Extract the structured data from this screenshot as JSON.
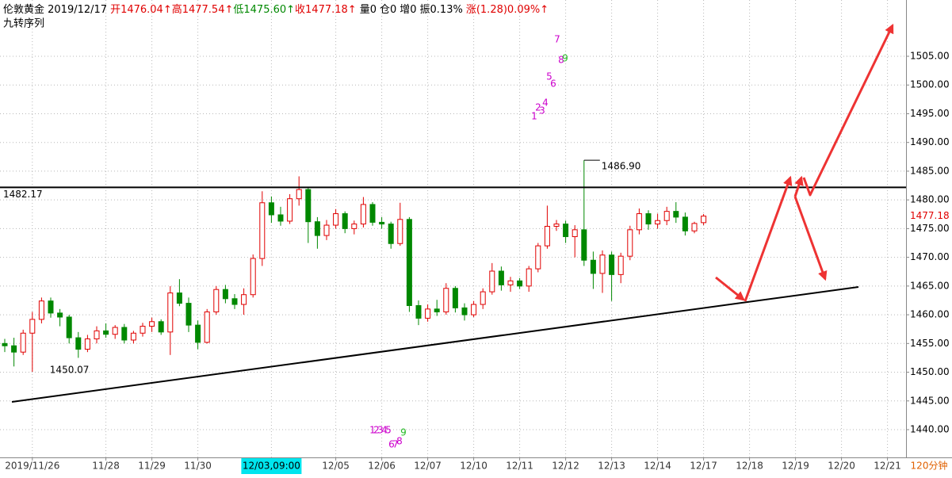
{
  "header": {
    "items": [
      {
        "text": "伦敦黄金 2019/12/17",
        "color": "#000000"
      },
      {
        "text": "开1476.04↑",
        "color": "#e00000"
      },
      {
        "text": "高1477.54↑",
        "color": "#e00000"
      },
      {
        "text": "低1475.60↑",
        "color": "#008800"
      },
      {
        "text": "收1477.18↑",
        "color": "#e00000"
      },
      {
        "text": "量0",
        "color": "#000000"
      },
      {
        "text": "仓0",
        "color": "#000000"
      },
      {
        "text": "增0",
        "color": "#000000"
      },
      {
        "text": "振0.13%",
        "color": "#000000"
      },
      {
        "text": "涨(1.28)0.09%↑",
        "color": "#e00000"
      }
    ],
    "indicator": "九转序列"
  },
  "chart_data": {
    "type": "candlestick",
    "period": "120分钟",
    "up_color": "#e00000",
    "down_color": "#008800",
    "ylim": [
      1435.17,
      1514.8
    ],
    "yticks": [
      {
        "value": 1440,
        "label": "1440.00"
      },
      {
        "value": 1445,
        "label": "1445.00"
      },
      {
        "value": 1450,
        "label": "1450.00"
      },
      {
        "value": 1455,
        "label": "1455.00"
      },
      {
        "value": 1460,
        "label": "1460.00"
      },
      {
        "value": 1465,
        "label": "1465.00"
      },
      {
        "value": 1470,
        "label": "1470.00"
      },
      {
        "value": 1475,
        "label": "1475.00"
      },
      {
        "value": 1480,
        "label": "1480.00"
      },
      {
        "value": 1485,
        "label": "1485.00"
      },
      {
        "value": 1490,
        "label": "1490.00"
      },
      {
        "value": 1495,
        "label": "1495.00"
      },
      {
        "value": 1500,
        "label": "1500.00"
      },
      {
        "value": 1505,
        "label": "1505.00"
      }
    ],
    "grid": true,
    "categories": [
      null,
      null,
      null,
      "2019/11/26",
      null,
      null,
      null,
      null,
      null,
      null,
      null,
      "11/28",
      null,
      null,
      null,
      null,
      "11/29",
      null,
      null,
      null,
      null,
      "11/30",
      null,
      null,
      null,
      null,
      null,
      null,
      null,
      "12/03,09:00",
      null,
      null,
      null,
      null,
      null,
      null,
      "12/05",
      null,
      null,
      null,
      null,
      "12/06",
      null,
      null,
      null,
      null,
      "12/07",
      null,
      null,
      null,
      null,
      "12/10",
      null,
      null,
      null,
      null,
      "12/11",
      null,
      null,
      null,
      null,
      "12/12",
      null,
      null,
      null,
      null,
      "12/13",
      null,
      null,
      null,
      null,
      "12/14",
      null,
      null,
      null,
      null,
      "12/17",
      null,
      null,
      null,
      null,
      "12/18",
      null,
      null,
      null,
      null,
      "12/19",
      null,
      null,
      null,
      null,
      "12/20",
      null,
      null,
      null,
      null,
      "12/21",
      null
    ],
    "ohlc": [
      [
        1455,
        1455.8,
        1453.5,
        1454.6
      ],
      [
        1454.6,
        1456,
        1451,
        1453.5
      ],
      [
        1453.5,
        1457.4,
        1453,
        1456.8
      ],
      [
        1456.8,
        1460.5,
        1450.07,
        1459.2
      ],
      [
        1459.2,
        1463,
        1458.5,
        1462.4
      ],
      [
        1462.4,
        1463,
        1459.5,
        1460.3
      ],
      [
        1460.3,
        1461,
        1458,
        1459.6
      ],
      [
        1459.6,
        1460,
        1455,
        1456
      ],
      [
        1456,
        1457,
        1452.5,
        1454
      ],
      [
        1454,
        1456.5,
        1453.5,
        1455.8
      ],
      [
        1455.8,
        1458,
        1455,
        1457.2
      ],
      [
        1457.2,
        1458.5,
        1456,
        1456.6
      ],
      [
        1456.6,
        1458.2,
        1455.8,
        1457.8
      ],
      [
        1457.8,
        1458.4,
        1455,
        1455.6
      ],
      [
        1455.6,
        1457.2,
        1455,
        1456.8
      ],
      [
        1456.8,
        1458.6,
        1456.2,
        1458
      ],
      [
        1458,
        1459.5,
        1457,
        1458.8
      ],
      [
        1458.8,
        1459.2,
        1456.5,
        1457
      ],
      [
        1457,
        1465,
        1453,
        1463.8
      ],
      [
        1463.8,
        1466.2,
        1461.5,
        1462
      ],
      [
        1462,
        1463,
        1457,
        1458.2
      ],
      [
        1458.2,
        1459,
        1454,
        1455.2
      ],
      [
        1455.2,
        1461,
        1455,
        1460.5
      ],
      [
        1460.5,
        1465,
        1460,
        1464.4
      ],
      [
        1464.4,
        1465.2,
        1462,
        1462.8
      ],
      [
        1462.8,
        1463.6,
        1461,
        1461.8
      ],
      [
        1461.8,
        1464.6,
        1460,
        1463.5
      ],
      [
        1463.5,
        1470.5,
        1463,
        1469.8
      ],
      [
        1469.8,
        1481.5,
        1468.5,
        1479.5
      ],
      [
        1479.5,
        1480.6,
        1476,
        1477.4
      ],
      [
        1477.4,
        1478.8,
        1475.5,
        1476.3
      ],
      [
        1476.3,
        1481,
        1475.8,
        1480.2
      ],
      [
        1480.2,
        1484.1,
        1479,
        1481.8
      ],
      [
        1481.8,
        1482.3,
        1472.5,
        1476.2
      ],
      [
        1476.2,
        1477,
        1471.5,
        1473.8
      ],
      [
        1473.8,
        1476.5,
        1473,
        1475.6
      ],
      [
        1475.6,
        1478.4,
        1475,
        1477.6
      ],
      [
        1477.6,
        1478,
        1474.2,
        1475
      ],
      [
        1475,
        1476.4,
        1474,
        1475.8
      ],
      [
        1475.8,
        1480.5,
        1475.2,
        1479.2
      ],
      [
        1479.2,
        1479.6,
        1475.5,
        1476.1
      ],
      [
        1476.1,
        1477,
        1475,
        1475.8
      ],
      [
        1475.8,
        1476.2,
        1471.5,
        1472.4
      ],
      [
        1472.4,
        1479.5,
        1472,
        1476.6
      ],
      [
        1476.6,
        1477,
        1460.5,
        1461.6
      ],
      [
        1461.6,
        1462.5,
        1458.2,
        1459.4
      ],
      [
        1459.4,
        1461.8,
        1458.8,
        1461
      ],
      [
        1461,
        1462.6,
        1459.8,
        1460.5
      ],
      [
        1460.5,
        1465.5,
        1460,
        1464.6
      ],
      [
        1464.6,
        1465,
        1460.4,
        1461.2
      ],
      [
        1461.2,
        1462,
        1459,
        1460
      ],
      [
        1460,
        1462.4,
        1459.6,
        1461.8
      ],
      [
        1461.8,
        1464.6,
        1461,
        1464
      ],
      [
        1464,
        1469,
        1463.5,
        1467.6
      ],
      [
        1467.6,
        1468.4,
        1464.2,
        1465.2
      ],
      [
        1465.2,
        1466.6,
        1464,
        1465.9
      ],
      [
        1465.9,
        1466.4,
        1464.5,
        1465
      ],
      [
        1465,
        1468.5,
        1464,
        1468
      ],
      [
        1468,
        1472.5,
        1467.4,
        1472
      ],
      [
        1472,
        1479,
        1471.5,
        1475.4
      ],
      [
        1475.4,
        1476.5,
        1474.6,
        1475.8
      ],
      [
        1475.8,
        1476.4,
        1472.5,
        1473.6
      ],
      [
        1473.6,
        1475.6,
        1470,
        1474.8
      ],
      [
        1474.8,
        1486.9,
        1468.5,
        1469.5
      ],
      [
        1469.5,
        1471,
        1464.5,
        1467.2
      ],
      [
        1467.2,
        1471.2,
        1463.8,
        1470.4
      ],
      [
        1470.4,
        1471,
        1462.4,
        1467
      ],
      [
        1467,
        1470.8,
        1465.5,
        1470.2
      ],
      [
        1470.2,
        1475.5,
        1469.5,
        1474.8
      ],
      [
        1474.8,
        1478.5,
        1474,
        1477.6
      ],
      [
        1477.6,
        1478.2,
        1474.8,
        1475.8
      ],
      [
        1475.8,
        1477.6,
        1475,
        1476.4
      ],
      [
        1476.4,
        1478.8,
        1475.6,
        1478
      ],
      [
        1478,
        1479.6,
        1476,
        1477
      ],
      [
        1477,
        1477.8,
        1473.8,
        1474.6
      ],
      [
        1474.6,
        1476.2,
        1474.2,
        1475.9
      ],
      [
        1476.04,
        1477.54,
        1475.6,
        1477.18
      ],
      null,
      null,
      null,
      null,
      null,
      null,
      null,
      null,
      null,
      null,
      null,
      null,
      null,
      null,
      null,
      null,
      null,
      null,
      null,
      null,
      null
    ],
    "hline": 1482.17,
    "high_label": {
      "value": 1486.9,
      "label": "1486.90"
    },
    "td_sequence": {
      "color": "#cc00cc",
      "nine_color": "#22bb22",
      "top": [
        "1",
        "2",
        "3",
        "4",
        "5",
        "6",
        "7",
        "8",
        "9"
      ],
      "bottom": [
        "1",
        "2",
        "3",
        "4",
        "5",
        "6",
        "7",
        "8",
        "9"
      ]
    }
  }
}
